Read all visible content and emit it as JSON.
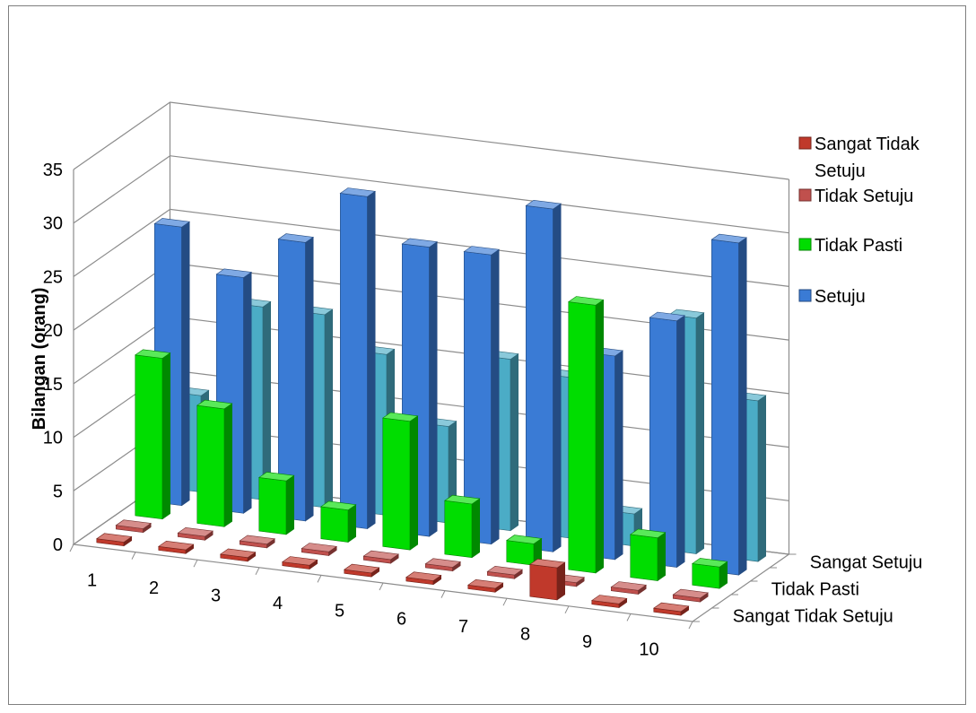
{
  "chart_data": {
    "type": "bar",
    "subtype": "3d-column",
    "title": "",
    "xlabel": "",
    "ylabel": "Bilangan (orang)",
    "ylim": [
      0,
      35
    ],
    "yticks": [
      "0",
      "5",
      "10",
      "15",
      "20",
      "25",
      "30",
      "35"
    ],
    "categories": [
      "1",
      "2",
      "3",
      "4",
      "5",
      "6",
      "7",
      "8",
      "9",
      "10"
    ],
    "depth_labels": [
      "Sangat Setuju",
      "Tidak Pasti",
      "Sangat Tidak Setuju"
    ],
    "grid": true,
    "legend_position": "right",
    "series": [
      {
        "name": "Sangat Tidak Setuju",
        "values": [
          0,
          0,
          0,
          0,
          0,
          0,
          0,
          3,
          0,
          0
        ],
        "color": "#c0392b"
      },
      {
        "name": "Tidak Setuju",
        "values": [
          0,
          0,
          0,
          0,
          0,
          0,
          0,
          0,
          0,
          0
        ],
        "color": "#c0504d"
      },
      {
        "name": "Tidak Pasti",
        "values": [
          15,
          11,
          5,
          3,
          12,
          5,
          2,
          25,
          4,
          2
        ],
        "color": "#00dd00"
      },
      {
        "name": "Setuju",
        "values": [
          26,
          22,
          26,
          31,
          27,
          27,
          32,
          19,
          23,
          31
        ],
        "color": "#3a7bd5"
      },
      {
        "name": "Sangat Setuju",
        "values": [
          9,
          18,
          18,
          15,
          9,
          16,
          15,
          3,
          22,
          15
        ],
        "color": "#4bacc6"
      }
    ]
  }
}
